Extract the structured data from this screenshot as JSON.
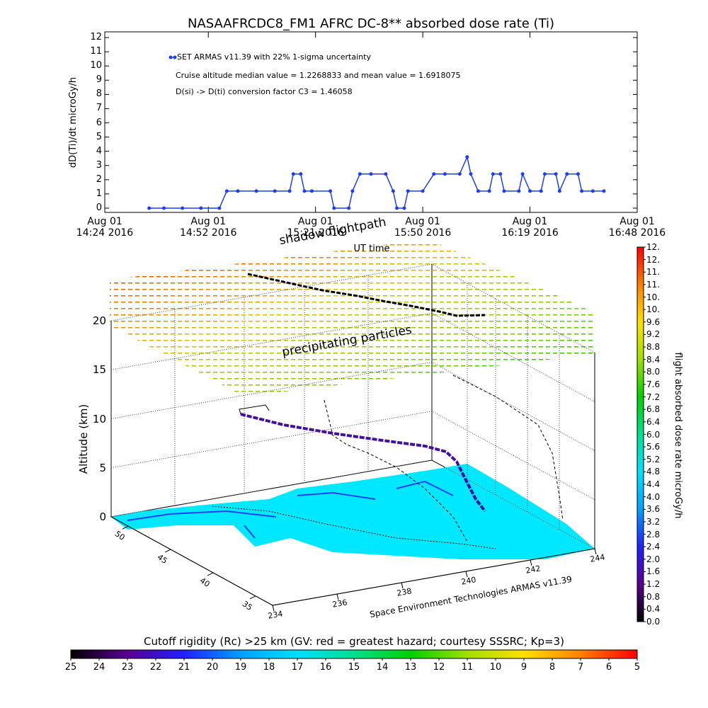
{
  "chart_data": [
    {
      "type": "line",
      "title": "NASAAFRCDC8_FM1 AFRC DC-8** absorbed dose rate (Ti)",
      "ylabel": "dD(Ti)/dt microGy/h",
      "xlabel": "UT time",
      "x": [
        "2016-08-01T14:36",
        "2016-08-01T14:40",
        "2016-08-01T14:45",
        "2016-08-01T14:50",
        "2016-08-01T14:55",
        "2016-08-01T14:57",
        "2016-08-01T15:00",
        "2016-08-01T15:05",
        "2016-08-01T15:10",
        "2016-08-01T15:14",
        "2016-08-01T15:15",
        "2016-08-01T15:17",
        "2016-08-01T15:18",
        "2016-08-01T15:20",
        "2016-08-01T15:25",
        "2016-08-01T15:26",
        "2016-08-01T15:30",
        "2016-08-01T15:31",
        "2016-08-01T15:33",
        "2016-08-01T15:36",
        "2016-08-01T15:40",
        "2016-08-01T15:42",
        "2016-08-01T15:43",
        "2016-08-01T15:45",
        "2016-08-01T15:46",
        "2016-08-01T15:50",
        "2016-08-01T15:53",
        "2016-08-01T15:56",
        "2016-08-01T16:00",
        "2016-08-01T16:02",
        "2016-08-01T16:03",
        "2016-08-01T16:05",
        "2016-08-01T16:08",
        "2016-08-01T16:09",
        "2016-08-01T16:11",
        "2016-08-01T16:12",
        "2016-08-01T16:16",
        "2016-08-01T16:17",
        "2016-08-01T16:19",
        "2016-08-01T16:22",
        "2016-08-01T16:23",
        "2016-08-01T16:26",
        "2016-08-01T16:27",
        "2016-08-01T16:29",
        "2016-08-01T16:32",
        "2016-08-01T16:33",
        "2016-08-01T16:36",
        "2016-08-01T16:39"
      ],
      "series": [
        {
          "name": "SET ARMAS v11.39 with 22% 1-sigma uncertainty",
          "color": "#1e3cff",
          "values": [
            0,
            0,
            0,
            0,
            0,
            1.2,
            1.2,
            1.2,
            1.2,
            1.2,
            2.4,
            2.4,
            1.2,
            1.2,
            1.2,
            0,
            0,
            1.2,
            2.4,
            2.4,
            2.4,
            1.2,
            0,
            0,
            1.2,
            1.2,
            2.4,
            2.4,
            2.4,
            3.6,
            2.4,
            1.2,
            1.2,
            2.4,
            2.4,
            1.2,
            1.2,
            2.4,
            1.2,
            1.2,
            2.4,
            2.4,
            1.2,
            2.4,
            2.4,
            1.2,
            1.2,
            1.2
          ]
        }
      ],
      "xlim": [
        "2016-08-01T14:24",
        "2016-08-01T16:48"
      ],
      "xticks": [
        {
          "value": "2016-08-01T14:24",
          "label": "Aug 01\n14:24 2016"
        },
        {
          "value": "2016-08-01T14:52",
          "label": "Aug 01\n14:52 2016"
        },
        {
          "value": "2016-08-01T15:21",
          "label": "Aug 01\n15:21 2016"
        },
        {
          "value": "2016-08-01T15:50",
          "label": "Aug 01\n15:50 2016"
        },
        {
          "value": "2016-08-01T16:19",
          "label": "Aug 01\n16:19 2016"
        },
        {
          "value": "2016-08-01T16:48",
          "label": "Aug 01\n16:48 2016"
        }
      ],
      "ylim": [
        -0.3,
        12.4
      ],
      "yticks": [
        0,
        1,
        2,
        3,
        4,
        5,
        6,
        7,
        8,
        9,
        10,
        11,
        12
      ],
      "annotations": [
        "Cruise altitude median value = 1.2268833 and mean value = 1.6918075",
        "D(si) -> D(ti) conversion factor C3 = 1.46058"
      ]
    },
    {
      "type": "surface3d",
      "zlabel": "Altitude (km)",
      "zlim": [
        0,
        20
      ],
      "zticks": [
        0,
        5,
        10,
        15,
        20
      ],
      "ylim": [
        52,
        33
      ],
      "yticks": [
        35,
        40,
        45,
        50
      ],
      "xlim": [
        234,
        244
      ],
      "xticks": [
        234,
        236,
        238,
        240,
        242,
        244
      ],
      "annotations": [
        "shadow flightpath",
        "precipitating particles"
      ],
      "caption": "Space Environment Technologies ARMAS v11.39"
    },
    {
      "type": "colorbar",
      "orientation": "vertical",
      "label": "flight absorbed dose rate microGy/h",
      "clim": [
        0,
        12
      ],
      "colors": [
        "#000000",
        "#5a0090",
        "#2020ff",
        "#00a0ff",
        "#00e0ff",
        "#00e090",
        "#00d000",
        "#a0e000",
        "#ffe000",
        "#ff8000",
        "#ff0000"
      ],
      "ticks": [
        {
          "value": 0,
          "label": "0.0"
        },
        {
          "value": 0.4,
          "label": "0.4"
        },
        {
          "value": 0.8,
          "label": "0.8"
        },
        {
          "value": 1.2,
          "label": "1.2"
        },
        {
          "value": 1.6,
          "label": "1.6"
        },
        {
          "value": 2,
          "label": "2.0"
        },
        {
          "value": 2.4,
          "label": "2.4"
        },
        {
          "value": 2.8,
          "label": "2.8"
        },
        {
          "value": 3.2,
          "label": "3.2"
        },
        {
          "value": 3.6,
          "label": "3.6"
        },
        {
          "value": 4,
          "label": "4.0"
        },
        {
          "value": 4.4,
          "label": "4.4"
        },
        {
          "value": 4.8,
          "label": "4.8"
        },
        {
          "value": 5.2,
          "label": "5.2"
        },
        {
          "value": 5.6,
          "label": "5.6"
        },
        {
          "value": 6,
          "label": "6.0"
        },
        {
          "value": 6.4,
          "label": "6.4"
        },
        {
          "value": 6.8,
          "label": "6.8"
        },
        {
          "value": 7.2,
          "label": "7.2"
        },
        {
          "value": 7.6,
          "label": "7.6"
        },
        {
          "value": 8,
          "label": "8.0"
        },
        {
          "value": 8.4,
          "label": "8.4"
        },
        {
          "value": 8.8,
          "label": "8.8"
        },
        {
          "value": 9.2,
          "label": "9.2"
        },
        {
          "value": 9.6,
          "label": "9.6"
        },
        {
          "value": 10,
          "label": "10."
        },
        {
          "value": 10.4,
          "label": "10."
        },
        {
          "value": 10.8,
          "label": "11."
        },
        {
          "value": 11.2,
          "label": "11."
        },
        {
          "value": 11.6,
          "label": "12."
        },
        {
          "value": 12,
          "label": "12."
        }
      ]
    },
    {
      "type": "colorbar",
      "orientation": "horizontal",
      "title": "Cutoff rigidity (Rc) >25 km (GV: red = greatest hazard; courtesy SSSRC; Kp=3)",
      "clim": [
        25,
        5
      ],
      "colors": [
        "#000000",
        "#5a0090",
        "#2020ff",
        "#00a0ff",
        "#00e0ff",
        "#00e090",
        "#00d000",
        "#a0e000",
        "#ffe000",
        "#ff8000",
        "#ff0000"
      ],
      "ticks": [
        25,
        24,
        23,
        22,
        21,
        20,
        19,
        18,
        17,
        16,
        15,
        14,
        13,
        12,
        11,
        10,
        9,
        8,
        7,
        6,
        5
      ]
    }
  ]
}
